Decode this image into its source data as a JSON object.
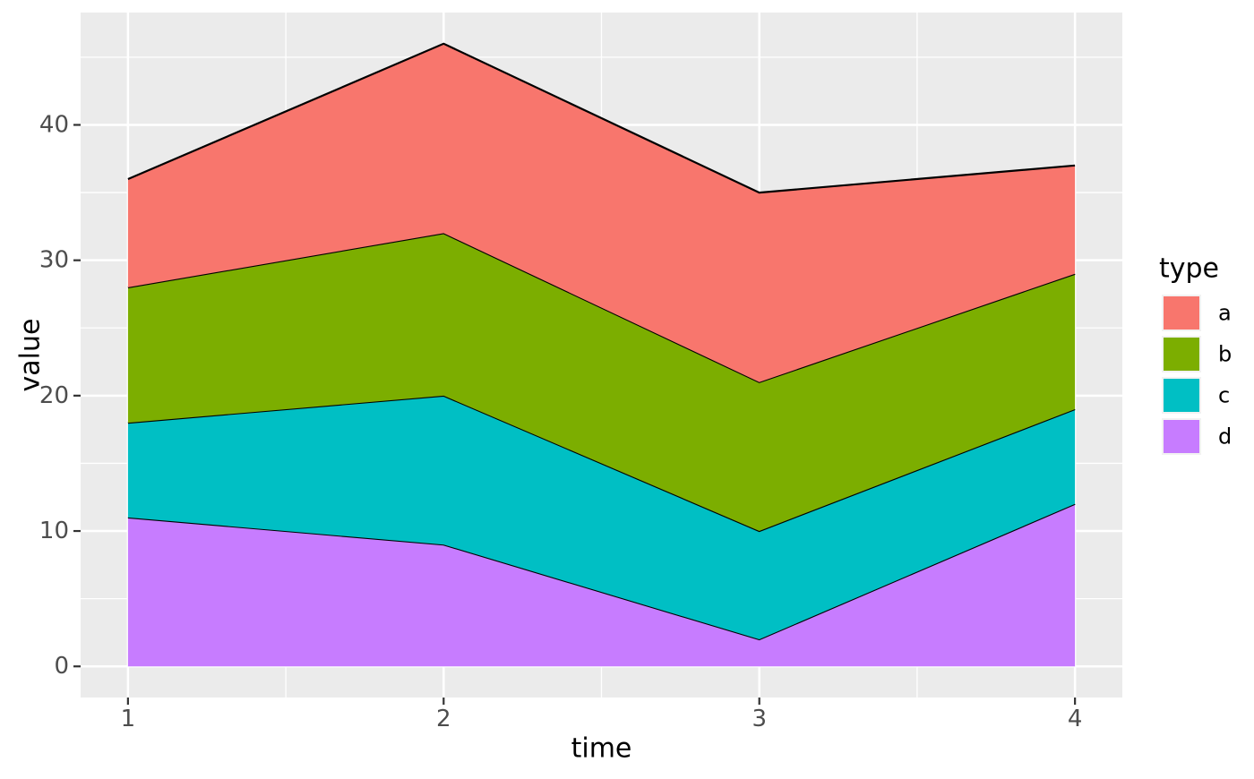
{
  "chart_data": {
    "type": "area",
    "stacked": true,
    "title": "",
    "xlabel": "time",
    "ylabel": "value",
    "x": [
      1,
      2,
      3,
      4
    ],
    "series": [
      {
        "name": "a",
        "values": [
          8,
          14,
          14,
          8
        ],
        "color": "#F8766D"
      },
      {
        "name": "b",
        "values": [
          10,
          12,
          11,
          10
        ],
        "color": "#7CAE00"
      },
      {
        "name": "c",
        "values": [
          7,
          11,
          8,
          7
        ],
        "color": "#00BFC4"
      },
      {
        "name": "d",
        "values": [
          11,
          9,
          2,
          12
        ],
        "color": "#C77CFF"
      }
    ],
    "stack_order_bottom_to_top": [
      "d",
      "c",
      "b",
      "a"
    ],
    "stacked_totals": [
      36,
      46,
      35,
      37
    ],
    "cumulative_boundaries": {
      "d_top": [
        11,
        9,
        2,
        12
      ],
      "c_top": [
        18,
        20,
        10,
        19
      ],
      "b_top": [
        28,
        32,
        21,
        29
      ],
      "a_top": [
        36,
        46,
        35,
        37
      ]
    },
    "x_ticks": [
      1,
      2,
      3,
      4
    ],
    "y_ticks": [
      0,
      10,
      20,
      30,
      40
    ],
    "x_minor_ticks": [
      1.5,
      2.5,
      3.5
    ],
    "y_minor_ticks": [
      5,
      15,
      25,
      35,
      45
    ],
    "x_domain": [
      0.85,
      4.15
    ],
    "y_domain": [
      -2.3,
      48.3
    ],
    "grid": true,
    "legend": {
      "title": "type",
      "position": "right",
      "entries": [
        {
          "label": "a",
          "color": "#F8766D"
        },
        {
          "label": "b",
          "color": "#7CAE00"
        },
        {
          "label": "c",
          "color": "#00BFC4"
        },
        {
          "label": "d",
          "color": "#C77CFF"
        }
      ]
    }
  },
  "style": {
    "background": "#FFFFFF",
    "panel_bg": "#EBEBEB",
    "grid_color": "#FFFFFF",
    "area_outline_color": "#000000",
    "tick_label_color": "#4D4D4D",
    "axis_title_color": "#000000",
    "tick_mark_color": "#333333",
    "legend_key_bg": "#F2F2F2",
    "legend_text_color": "#000000"
  }
}
